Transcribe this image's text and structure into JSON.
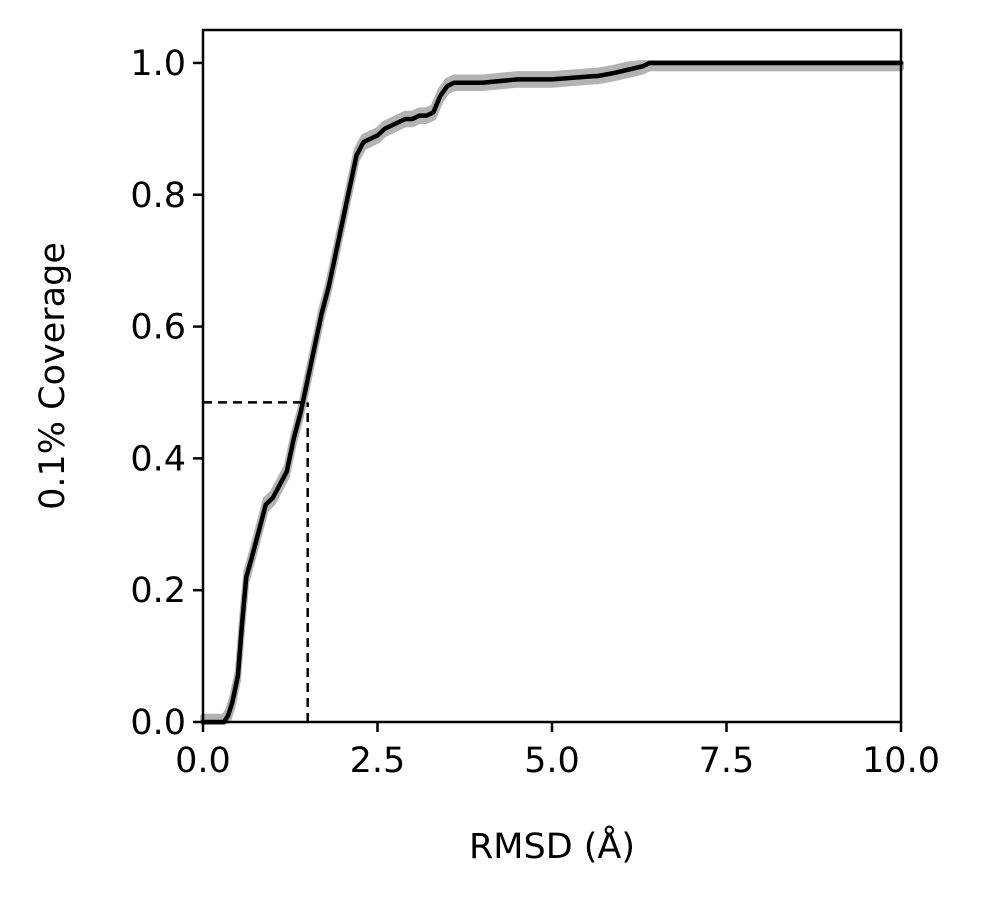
{
  "chart_data": {
    "type": "line",
    "title": "",
    "xlabel": "RMSD (Å)",
    "ylabel": "0.1% Coverage",
    "xlim": [
      0,
      10
    ],
    "ylim": [
      0,
      1.05
    ],
    "xticks": [
      0,
      2.5,
      5,
      7.5,
      10
    ],
    "xtick_labels": [
      "0.0",
      "2.5",
      "5.0",
      "7.5",
      "10.0"
    ],
    "yticks": [
      0,
      0.2,
      0.4,
      0.6,
      0.8,
      1.0
    ],
    "ytick_labels": [
      "0.0",
      "0.2",
      "0.4",
      "0.6",
      "0.8",
      "1.0"
    ],
    "grid": false,
    "legend": "none",
    "line_color": "#000000",
    "band_color": "#b3b3b3",
    "series": [
      {
        "x": [
          0.0,
          0.3,
          0.36,
          0.42,
          0.5,
          0.56,
          0.62,
          0.7,
          0.8,
          0.9,
          1.0,
          1.1,
          1.2,
          1.3,
          1.4,
          1.5,
          1.6,
          1.7,
          1.8,
          1.9,
          2.0,
          2.1,
          2.2,
          2.3,
          2.4,
          2.5,
          2.6,
          2.7,
          2.8,
          2.9,
          3.0,
          3.1,
          3.2,
          3.3,
          3.4,
          3.5,
          3.6,
          3.7,
          3.8,
          3.9,
          4.0,
          4.5,
          4.6,
          4.8,
          5.0,
          5.6,
          5.65,
          5.9,
          6.1,
          6.3,
          6.4,
          7.0,
          10.0
        ],
        "y": [
          0.0,
          0.0,
          0.01,
          0.03,
          0.07,
          0.15,
          0.22,
          0.25,
          0.29,
          0.33,
          0.34,
          0.36,
          0.38,
          0.43,
          0.47,
          0.52,
          0.57,
          0.62,
          0.66,
          0.71,
          0.76,
          0.81,
          0.86,
          0.88,
          0.885,
          0.89,
          0.9,
          0.905,
          0.91,
          0.915,
          0.915,
          0.92,
          0.92,
          0.925,
          0.95,
          0.965,
          0.97,
          0.97,
          0.97,
          0.97,
          0.97,
          0.975,
          0.975,
          0.975,
          0.975,
          0.98,
          0.98,
          0.985,
          0.99,
          0.995,
          1.0,
          1.0,
          1.0
        ],
        "band": 0.008
      }
    ],
    "reference_lines": [
      {
        "x": 1.5,
        "y": 0.485,
        "style": "dashed"
      }
    ]
  }
}
